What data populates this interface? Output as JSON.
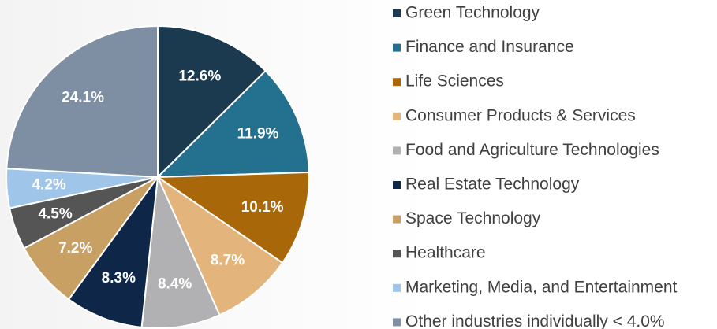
{
  "chart_data": {
    "type": "pie",
    "categories": [
      "Green Technology",
      "Finance and Insurance",
      "Life Sciences",
      "Consumer Products & Services",
      "Food and Agriculture Technologies",
      "Real Estate Technology",
      "Space Technology",
      "Healthcare",
      "Marketing, Media, and Entertainment",
      "Other industries individually < 4.0%"
    ],
    "values": [
      12.6,
      11.9,
      10.1,
      8.7,
      8.4,
      8.3,
      7.2,
      4.5,
      4.2,
      24.1
    ],
    "value_labels": [
      "12.6%",
      "11.9%",
      "10.1%",
      "8.7%",
      "8.4%",
      "8.3%",
      "7.2%",
      "4.5%",
      "4.2%",
      "24.1%"
    ],
    "colors": [
      "#1b3a4f",
      "#24708f",
      "#a8680a",
      "#e3b57c",
      "#b1b1b3",
      "#0e2748",
      "#c9a063",
      "#555555",
      "#9fc6e8",
      "#7f8fa3"
    ],
    "legend": "right"
  }
}
